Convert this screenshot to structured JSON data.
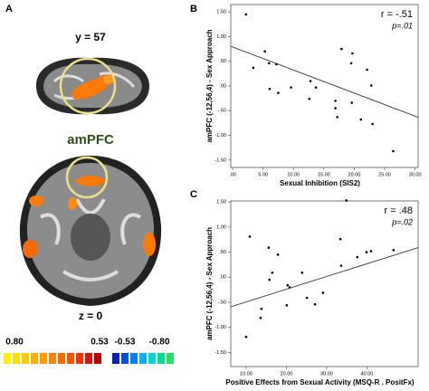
{
  "panel_a": {
    "label": "A",
    "top_slice": "y = 57",
    "region": "amPFC",
    "bottom_slice": "z = 0",
    "colorbar_labels": [
      "0.80",
      "0.53",
      "-0.53",
      "-0.80"
    ]
  },
  "chart_data": [
    {
      "type": "scatter",
      "panel_label": "B",
      "y_label": "amPFC (-12,56,4) - Sex Approach",
      "x_label": "Sexual Inhibition (SIS2)",
      "annotations": [
        "r = -.51",
        "p=.01"
      ],
      "color": "#000000",
      "x": [
        2.2,
        5.3,
        6.0,
        7.2,
        3.4,
        6.1,
        9.6,
        7.5,
        12.8,
        13.7,
        12.6,
        17.9,
        19.7,
        19.5,
        22.1,
        22.8,
        16.9,
        16.9,
        17.2,
        19.6,
        21.1,
        23.0,
        26.4
      ],
      "values": [
        1.45,
        0.7,
        0.46,
        0.44,
        0.37,
        -0.06,
        -0.03,
        -0.14,
        0.1,
        -0.03,
        -0.26,
        0.75,
        0.66,
        0.46,
        0.33,
        0.01,
        -0.3,
        -0.45,
        -0.63,
        -0.34,
        -0.68,
        -0.77,
        -1.32
      ],
      "fit": {
        "intercept": 0.79,
        "slope": -0.0467
      },
      "xlim": [
        -0.3,
        30.5
      ],
      "ylim": [
        -1.65,
        1.65
      ],
      "xticks": [
        {
          "value": 0,
          "label": ".00"
        },
        {
          "value": 5,
          "label": "5.00"
        },
        {
          "value": 10,
          "label": "10.00"
        },
        {
          "value": 15,
          "label": "15.00"
        },
        {
          "value": 20,
          "label": "20.00"
        },
        {
          "value": 25,
          "label": "25.00"
        },
        {
          "value": 30,
          "label": "30.00"
        }
      ],
      "yticks": [
        {
          "value": 1.5,
          "label": "1.50"
        },
        {
          "value": 1,
          "label": "1.00"
        },
        {
          "value": 0.5,
          "label": ".50"
        },
        {
          "value": 0,
          "label": ".00"
        },
        {
          "value": -0.5,
          "label": "-.50"
        },
        {
          "value": -1,
          "label": "-1.00"
        },
        {
          "value": -1.5,
          "label": "-1.50"
        }
      ]
    },
    {
      "type": "scatter",
      "panel_label": "C",
      "y_label": "amPFC (-12,56,4) - Sex Approach",
      "x_label": "Positive Effects from Sexual Activity (MSQ-R . PositFx)",
      "annotations": [
        "r = .48",
        "p=.02"
      ],
      "color": "#000000",
      "x": [
        34.9,
        10.9,
        15.6,
        17.9,
        16.5,
        15.8,
        23.9,
        20.3,
        20.8,
        25.1,
        29.1,
        33.6,
        33.4,
        37.6,
        39.9,
        41.0,
        46.6,
        13.8,
        20.1,
        27.1,
        13.6,
        10.0
      ],
      "values": [
        1.53,
        0.81,
        0.59,
        0.45,
        0.09,
        -0.05,
        0.09,
        -0.16,
        -0.2,
        -0.41,
        -0.31,
        0.23,
        0.76,
        0.4,
        0.5,
        0.52,
        0.54,
        -0.63,
        -0.56,
        -0.54,
        -0.81,
        -1.19
      ],
      "fit": {
        "intercept": -0.747,
        "slope": 0.02538
      },
      "xlim": [
        6.2,
        52.7
      ],
      "ylim": [
        -1.78,
        1.52
      ],
      "xticks": [
        {
          "value": 10,
          "label": "10.00"
        },
        {
          "value": 20,
          "label": "20.00"
        },
        {
          "value": 30,
          "label": "30.00"
        },
        {
          "value": 40,
          "label": "40.00"
        }
      ],
      "yticks": [
        {
          "value": 1.5,
          "label": "1.50"
        },
        {
          "value": 1,
          "label": "1.00"
        },
        {
          "value": 0.5,
          "label": ".50"
        },
        {
          "value": 0,
          "label": ".00"
        },
        {
          "value": -0.5,
          "label": "-.50"
        },
        {
          "value": -1,
          "label": "-1.00"
        },
        {
          "value": -1.5,
          "label": "-1.50"
        }
      ]
    }
  ]
}
